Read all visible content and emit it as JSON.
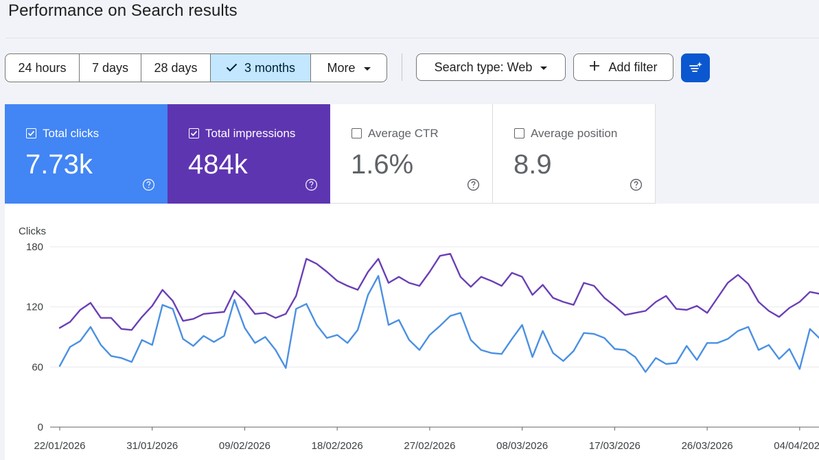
{
  "page": {
    "title": "Performance on Search results"
  },
  "toolbar": {
    "ranges": [
      {
        "label": "24 hours",
        "selected": false
      },
      {
        "label": "7 days",
        "selected": false
      },
      {
        "label": "28 days",
        "selected": false
      },
      {
        "label": "3 months",
        "selected": true
      },
      {
        "label": "More",
        "selected": false
      }
    ],
    "search_type_label": "Search type: Web",
    "add_filter_label": "Add filter",
    "icons": {
      "selected_check": "check-icon",
      "more_dropdown": "chevron-down-icon",
      "search_type_dropdown": "chevron-down-icon",
      "add_filter": "plus-icon",
      "filter_button": "filter-sparkle-icon"
    }
  },
  "metrics": [
    {
      "label": "Total clicks",
      "value": "7.73k",
      "checked": true,
      "color": "#4285f4"
    },
    {
      "label": "Total impressions",
      "value": "484k",
      "checked": true,
      "color": "#5e35b1"
    },
    {
      "label": "Average CTR",
      "value": "1.6%",
      "checked": false,
      "color": "#ffffff"
    },
    {
      "label": "Average position",
      "value": "8.9",
      "checked": false,
      "color": "#ffffff"
    }
  ],
  "colors": {
    "accent_blue": "#0b57d0",
    "selected_range_bg": "#c2e7ff",
    "clicks_line": "#4a90e2",
    "impressions_line": "#6a3fb5"
  },
  "chart_data": {
    "type": "line",
    "ylabel": "Clicks",
    "ylim": [
      0,
      180
    ],
    "yticks": [
      "180",
      "120",
      "60",
      "0"
    ],
    "xtick_labels": [
      "22/01/2026",
      "31/01/2026",
      "09/02/2026",
      "18/02/2026",
      "27/02/2026",
      "08/03/2026",
      "17/03/2026",
      "26/03/2026",
      "04/04/2026"
    ],
    "x_start": "2026-01-22",
    "grid": true,
    "series": [
      {
        "name": "Total clicks",
        "color": "#4a90e2",
        "values": [
          61,
          80,
          86,
          100,
          82,
          71,
          69,
          65,
          87,
          82,
          122,
          118,
          88,
          81,
          91,
          85,
          91,
          127,
          99,
          84,
          90,
          77,
          59,
          118,
          123,
          102,
          89,
          92,
          84,
          97,
          132,
          151,
          102,
          107,
          87,
          77,
          92,
          101,
          111,
          114,
          87,
          77,
          74,
          73,
          88,
          102,
          70,
          96,
          74,
          66,
          76,
          94,
          93,
          89,
          78,
          77,
          70,
          55,
          69,
          63,
          64,
          81,
          67,
          84,
          84,
          88,
          96,
          100,
          77,
          82,
          68,
          78,
          58,
          98,
          88
        ]
      },
      {
        "name": "Total impressions",
        "values": [
          99,
          105,
          117,
          124,
          109,
          109,
          98,
          97,
          110,
          121,
          137,
          126,
          106,
          108,
          113,
          114,
          115,
          136,
          126,
          113,
          114,
          109,
          113,
          131,
          168,
          163,
          155,
          146,
          141,
          137,
          155,
          168,
          144,
          150,
          144,
          141,
          155,
          171,
          173,
          150,
          140,
          150,
          146,
          141,
          154,
          150,
          132,
          142,
          129,
          125,
          122,
          144,
          141,
          129,
          121,
          112,
          114,
          116,
          125,
          131,
          118,
          117,
          121,
          114,
          129,
          144,
          152,
          143,
          125,
          116,
          110,
          119,
          125,
          135,
          133
        ],
        "color": "#6a3fb5"
      }
    ]
  }
}
